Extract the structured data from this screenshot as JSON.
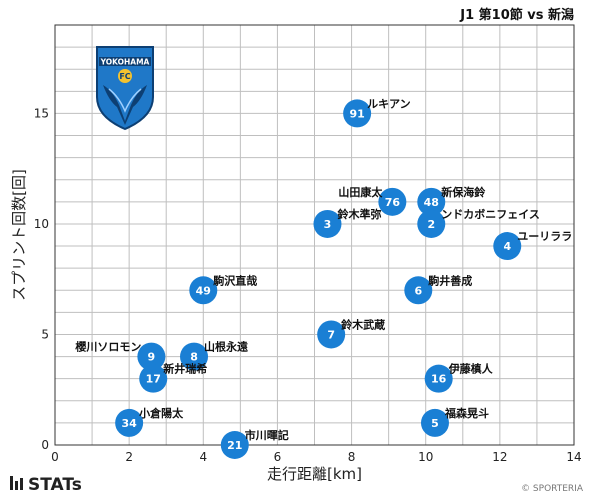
{
  "header": {
    "match_title": "J1 第10節 vs 新潟"
  },
  "branding": {
    "logo_text": "STATs",
    "credit": "© SPORTERIA",
    "emblem_text": "YOKOHAMA",
    "emblem_fc": "FC"
  },
  "colors": {
    "marker": "#1a7fd4",
    "grid": "#bfbfbf",
    "plot_border": "#333333",
    "emblem_blue": "#1f78c8"
  },
  "chart_data": {
    "type": "scatter",
    "title": "J1 第10節 vs 新潟",
    "xlabel": "走行距離[km]",
    "ylabel": "スプリント回数[回]",
    "xlim": [
      0,
      14
    ],
    "ylim": [
      0,
      19
    ],
    "xticks": [
      0,
      2,
      4,
      6,
      8,
      10,
      12,
      14
    ],
    "yticks": [
      0,
      5,
      10,
      15
    ],
    "grid": true,
    "points": [
      {
        "number": "91",
        "name": "ルキアン",
        "x": 8.15,
        "y": 15
      },
      {
        "number": "76",
        "name": "山田康太",
        "x": 9.1,
        "y": 11
      },
      {
        "number": "48",
        "name": "新保海鈴",
        "x": 10.15,
        "y": 11
      },
      {
        "number": "3",
        "name": "鈴木準弥",
        "x": 7.35,
        "y": 10
      },
      {
        "number": "2",
        "name": "ンドカボニフェイス",
        "x": 10.15,
        "y": 10
      },
      {
        "number": "4",
        "name": "ユーリララ",
        "x": 12.2,
        "y": 9
      },
      {
        "number": "49",
        "name": "駒沢直哉",
        "x": 4.0,
        "y": 7
      },
      {
        "number": "6",
        "name": "駒井善成",
        "x": 9.8,
        "y": 7
      },
      {
        "number": "7",
        "name": "鈴木武蔵",
        "x": 7.45,
        "y": 5
      },
      {
        "number": "9",
        "name": "櫻川ソロモン",
        "x": 2.6,
        "y": 4
      },
      {
        "number": "8",
        "name": "山根永遠",
        "x": 3.75,
        "y": 4
      },
      {
        "number": "17",
        "name": "新井瑞希",
        "x": 2.65,
        "y": 3
      },
      {
        "number": "16",
        "name": "伊藤槙人",
        "x": 10.35,
        "y": 3
      },
      {
        "number": "34",
        "name": "小倉陽太",
        "x": 2.0,
        "y": 1
      },
      {
        "number": "5",
        "name": "福森晃斗",
        "x": 10.25,
        "y": 1
      },
      {
        "number": "21",
        "name": "市川暉記",
        "x": 4.85,
        "y": 0
      }
    ]
  }
}
